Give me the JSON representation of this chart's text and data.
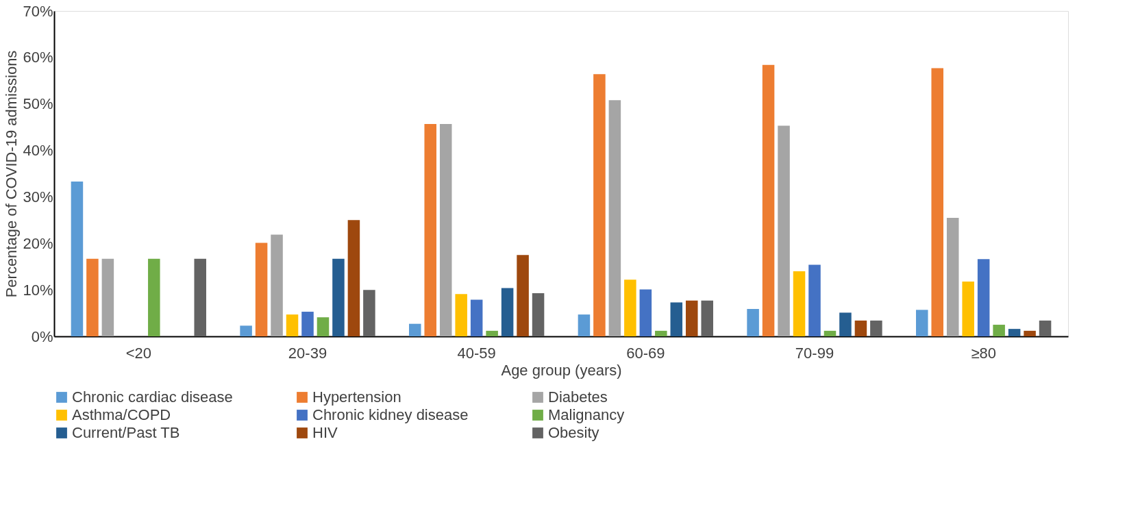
{
  "chart_data": {
    "type": "bar",
    "xlabel": "Age group (years)",
    "ylabel": "Percentage of COVID-19 admissions",
    "categories": [
      "<20",
      "20-39",
      "40-59",
      "60-69",
      "70-99",
      "≥80"
    ],
    "series": [
      {
        "name": "Chronic cardiac disease",
        "color": "#5b9bd5",
        "values": [
          33.3,
          2.3,
          2.7,
          4.7,
          5.9,
          5.7
        ]
      },
      {
        "name": "Hypertension",
        "color": "#ed7d31",
        "values": [
          16.7,
          20.1,
          45.7,
          56.4,
          58.4,
          57.7
        ]
      },
      {
        "name": "Diabetes",
        "color": "#a5a5a5",
        "values": [
          16.7,
          21.9,
          45.7,
          50.8,
          45.3,
          25.5
        ]
      },
      {
        "name": "Asthma/COPD",
        "color": "#ffc000",
        "values": [
          0,
          4.7,
          9.1,
          12.2,
          14.0,
          11.8
        ]
      },
      {
        "name": "Chronic kidney disease",
        "color": "#4472c4",
        "values": [
          0,
          5.3,
          7.9,
          10.1,
          15.4,
          16.6
        ]
      },
      {
        "name": "Malignancy",
        "color": "#70ad47",
        "values": [
          16.7,
          4.1,
          1.2,
          1.2,
          1.2,
          2.5
        ]
      },
      {
        "name": "Current/Past TB",
        "color": "#255e91",
        "values": [
          0,
          16.7,
          10.4,
          7.3,
          5.1,
          1.6
        ]
      },
      {
        "name": "HIV",
        "color": "#9e480e",
        "values": [
          0,
          25.0,
          17.5,
          7.7,
          3.4,
          1.2
        ]
      },
      {
        "name": "Obesity",
        "color": "#636363",
        "values": [
          16.7,
          10.0,
          9.3,
          7.7,
          3.4,
          3.4
        ]
      }
    ],
    "ylim": [
      0,
      70
    ],
    "yticks": [
      {
        "value": 0,
        "label": "0%"
      },
      {
        "value": 10,
        "label": "10%"
      },
      {
        "value": 20,
        "label": "20%"
      },
      {
        "value": 30,
        "label": "30%"
      },
      {
        "value": 40,
        "label": "40%"
      },
      {
        "value": 50,
        "label": "50%"
      },
      {
        "value": 60,
        "label": "60%"
      },
      {
        "value": 70,
        "label": "70%"
      }
    ],
    "grid": false,
    "legend": "bottom"
  }
}
